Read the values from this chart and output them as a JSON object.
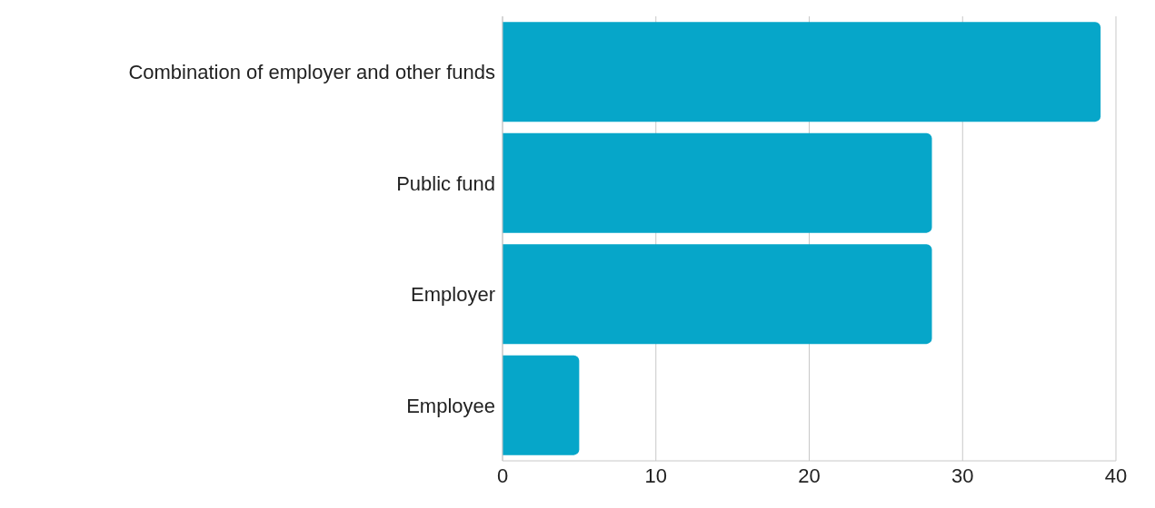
{
  "chart_data": {
    "type": "bar",
    "orientation": "horizontal",
    "categories": [
      "Combination of employer and other funds",
      "Public fund",
      "Employer",
      "Employee"
    ],
    "values": [
      39,
      28,
      28,
      5
    ],
    "color": "#06a6c9",
    "xlim": [
      0,
      40
    ],
    "xticks": [
      0,
      10,
      20,
      30,
      40
    ],
    "grid": "x",
    "legend": false
  }
}
